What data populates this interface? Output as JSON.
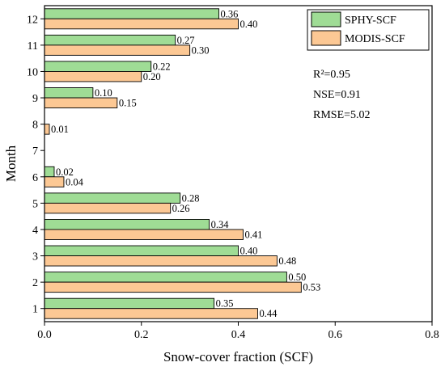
{
  "chart_data": {
    "type": "bar",
    "orientation": "horizontal",
    "categories": [
      "1",
      "2",
      "3",
      "4",
      "5",
      "6",
      "7",
      "8",
      "9",
      "10",
      "11",
      "12"
    ],
    "series": [
      {
        "name": "SPHY-SCF",
        "values": [
          0.35,
          0.5,
          0.4,
          0.34,
          0.28,
          0.02,
          null,
          null,
          0.1,
          0.22,
          0.27,
          0.36
        ],
        "labels": [
          "0.35",
          "0.50",
          "0.40",
          "0.34",
          "0.28",
          "0.02",
          "",
          "",
          "0.10",
          "0.22",
          "0.27",
          "0.36"
        ]
      },
      {
        "name": "MODIS-SCF",
        "values": [
          0.44,
          0.53,
          0.48,
          0.41,
          0.26,
          0.04,
          null,
          0.01,
          0.15,
          0.2,
          0.3,
          0.4
        ],
        "labels": [
          "0.44",
          "0.53",
          "0.48",
          "0.41",
          "0.26",
          "0.04",
          "",
          "0.01",
          "0.15",
          "0.20",
          "0.30",
          "0.40"
        ]
      }
    ],
    "xlabel": "Snow-cover fraction (SCF)",
    "ylabel": "Month",
    "xlim": [
      0,
      0.8
    ],
    "x_ticks": [
      "0.0",
      "0.2",
      "0.4",
      "0.6",
      "0.8"
    ],
    "legend_position": "top-right",
    "grid": false,
    "annotations": [
      "R²=0.95",
      "NSE=0.91",
      "RMSE=5.02"
    ],
    "colors": {
      "SPHY-SCF": "#9fdc95",
      "MODIS-SCF": "#fcc894",
      "bar_edge": "#000000"
    }
  }
}
